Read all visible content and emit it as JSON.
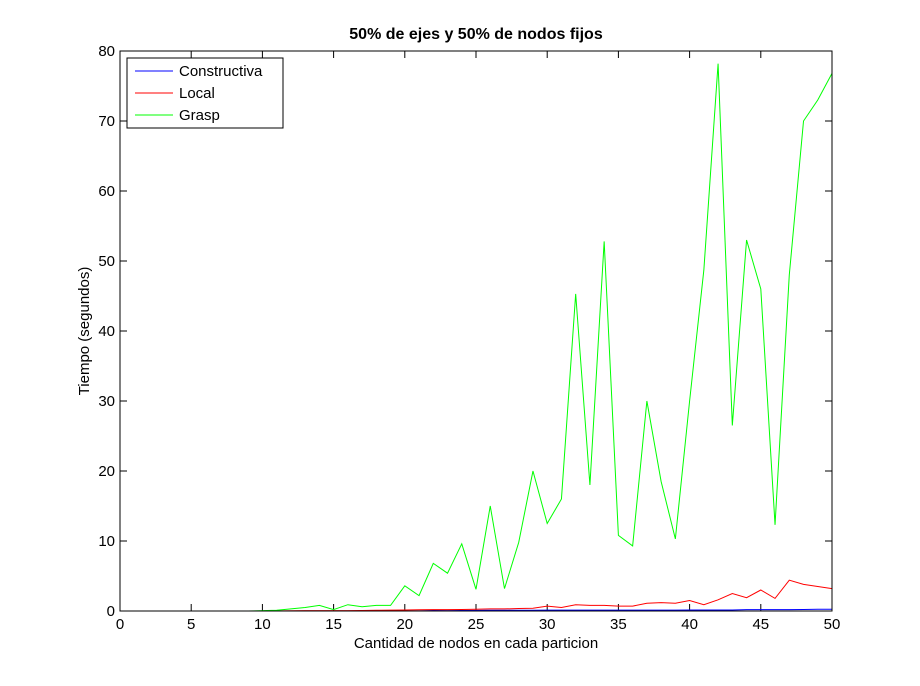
{
  "chart_data": {
    "type": "line",
    "title": "50% de ejes y 50% de nodos fijos",
    "xlabel": "Cantidad de nodos en cada particion",
    "ylabel": "Tiempo (segundos)",
    "xlim": [
      0,
      50
    ],
    "ylim": [
      0,
      80
    ],
    "xticks": [
      0,
      5,
      10,
      15,
      20,
      25,
      30,
      35,
      40,
      45,
      50
    ],
    "yticks": [
      0,
      10,
      20,
      30,
      40,
      50,
      60,
      70,
      80
    ],
    "grid": false,
    "legend_position": "top-left",
    "x": [
      2,
      3,
      4,
      5,
      6,
      7,
      8,
      9,
      10,
      11,
      12,
      13,
      14,
      15,
      16,
      17,
      18,
      19,
      20,
      21,
      22,
      23,
      24,
      25,
      26,
      27,
      28,
      29,
      30,
      31,
      32,
      33,
      34,
      35,
      36,
      37,
      38,
      39,
      40,
      41,
      42,
      43,
      44,
      45,
      46,
      47,
      48,
      49,
      50
    ],
    "series": [
      {
        "name": "Constructiva",
        "color": "#0000ff",
        "values": [
          0,
          0,
          0,
          0,
          0,
          0,
          0,
          0,
          0,
          0,
          0,
          0,
          0,
          0,
          0,
          0,
          0,
          0,
          0.02,
          0.02,
          0.08,
          0.05,
          0.08,
          0.09,
          0.1,
          0.1,
          0.1,
          0.1,
          0.12,
          0.12,
          0.12,
          0.12,
          0.12,
          0.12,
          0.13,
          0.13,
          0.13,
          0.13,
          0.14,
          0.14,
          0.14,
          0.15,
          0.2,
          0.2,
          0.2,
          0.2,
          0.22,
          0.25,
          0.25
        ]
      },
      {
        "name": "Local",
        "color": "#ff0000",
        "values": [
          0,
          0,
          0,
          0,
          0,
          0,
          0,
          0,
          0,
          0.02,
          0.03,
          0.05,
          0.05,
          0.05,
          0.06,
          0.08,
          0.1,
          0.12,
          0.15,
          0.18,
          0.2,
          0.2,
          0.22,
          0.25,
          0.3,
          0.3,
          0.35,
          0.4,
          0.7,
          0.5,
          0.9,
          0.8,
          0.8,
          0.7,
          0.7,
          1.1,
          1.2,
          1.1,
          1.5,
          0.9,
          1.6,
          2.5,
          1.9,
          3.0,
          1.8,
          4.4,
          3.8,
          3.5,
          3.2
        ]
      },
      {
        "name": "Grasp",
        "color": "#00ff00",
        "values": [
          0,
          0,
          0,
          0,
          0,
          0,
          0,
          0,
          0.05,
          0.1,
          0.3,
          0.5,
          0.8,
          0.2,
          0.9,
          0.6,
          0.8,
          0.8,
          3.6,
          2.2,
          6.8,
          5.4,
          9.6,
          3.1,
          15.0,
          3.2,
          9.8,
          20.0,
          12.5,
          16.0,
          45.3,
          18.0,
          52.8,
          10.8,
          9.3,
          30.0,
          18.5,
          10.3,
          30.0,
          48.7,
          78.2,
          26.5,
          53.0,
          46.0,
          12.3,
          48.0,
          70.0,
          73.0,
          76.8
        ]
      }
    ]
  }
}
